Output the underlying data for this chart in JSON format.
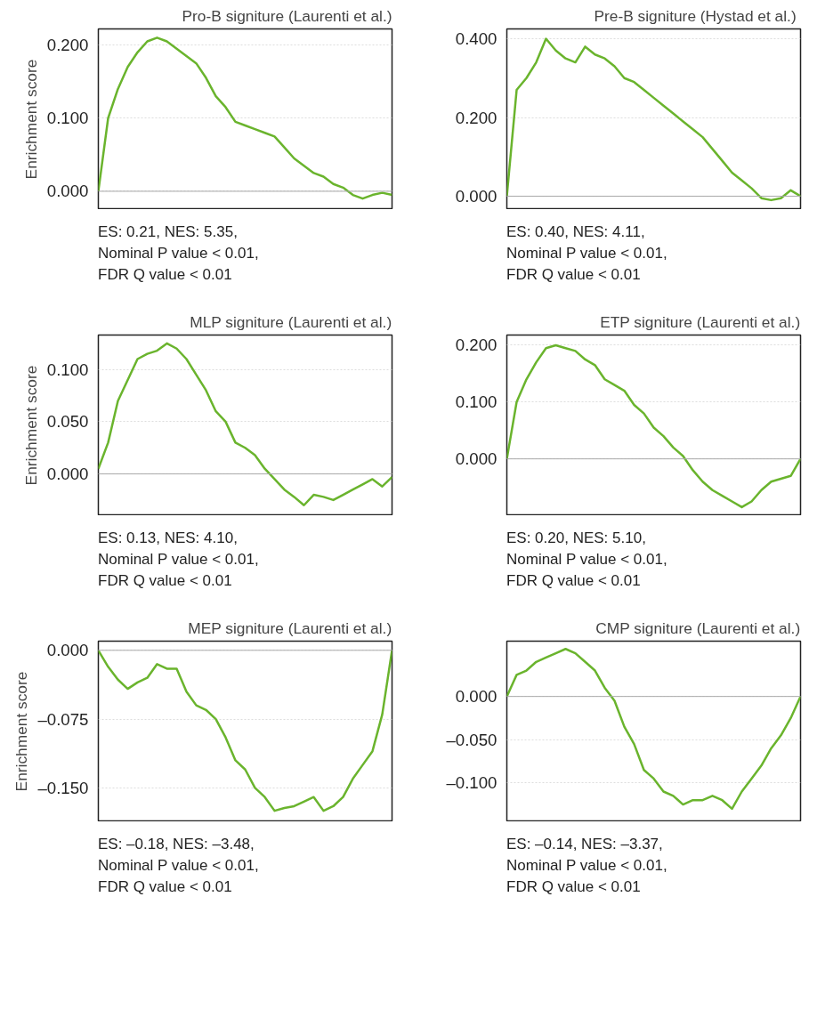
{
  "chart_data": [
    {
      "type": "line",
      "title": "Pro-B signiture (Laurenti et al.)",
      "ylabel": "Enrichment score",
      "categories": [
        null,
        null,
        null,
        null,
        null,
        null,
        null,
        null,
        null,
        null,
        null,
        null,
        null,
        null,
        null,
        null,
        null,
        null,
        null,
        null,
        null,
        null,
        null,
        null,
        null,
        null,
        null,
        null,
        null,
        null,
        null
      ],
      "ylim": [
        -0.025,
        0.222
      ],
      "yticks": [
        {
          "value": 0,
          "label": "0.000"
        },
        {
          "value": 0.1,
          "label": "0.100"
        },
        {
          "value": 0.2,
          "label": "0.200"
        }
      ],
      "tick_labels": "y",
      "grid": "y",
      "series": [
        {
          "color": "#6ab42d",
          "values": [
            0,
            0.1,
            0.14,
            0.17,
            0.19,
            0.205,
            0.21,
            0.205,
            0.195,
            0.185,
            0.175,
            0.155,
            0.13,
            0.115,
            0.095,
            0.09,
            0.085,
            0.08,
            0.075,
            0.06,
            0.045,
            0.035,
            0.025,
            0.02,
            0.01,
            0.005,
            -0.005,
            -0.01,
            -0.005,
            -0.002,
            -0.005
          ]
        }
      ],
      "ref_lines": [
        {
          "axis": "y",
          "value": 0,
          "color": "#aaaaaa"
        }
      ],
      "annotations": [
        "ES: 0.21, NES: 5.35,",
        "Nominal P value < 0.01,",
        "FDR Q value < 0.01"
      ]
    },
    {
      "type": "line",
      "title": "Pre-B signiture  (Hystad et al.)",
      "categories": [
        null,
        null,
        null,
        null,
        null,
        null,
        null,
        null,
        null,
        null,
        null,
        null,
        null,
        null,
        null,
        null,
        null,
        null,
        null,
        null,
        null,
        null,
        null,
        null,
        null,
        null,
        null,
        null,
        null,
        null,
        null
      ],
      "ylim": [
        -0.034,
        0.425
      ],
      "yticks": [
        {
          "value": 0,
          "label": "0.000"
        },
        {
          "value": 0.2,
          "label": "0.200"
        },
        {
          "value": 0.4,
          "label": "0.400"
        }
      ],
      "tick_labels": "y",
      "grid": "y",
      "series": [
        {
          "color": "#6ab42d",
          "values": [
            0,
            0.27,
            0.3,
            0.34,
            0.4,
            0.37,
            0.35,
            0.34,
            0.38,
            0.36,
            0.35,
            0.33,
            0.3,
            0.29,
            0.27,
            0.25,
            0.23,
            0.21,
            0.19,
            0.17,
            0.15,
            0.12,
            0.09,
            0.06,
            0.04,
            0.02,
            -0.005,
            -0.01,
            -0.005,
            0.015,
            0
          ]
        }
      ],
      "ref_lines": [
        {
          "axis": "y",
          "value": 0,
          "color": "#aaaaaa"
        }
      ],
      "annotations": [
        "ES: 0.40, NES: 4.11,",
        "Nominal P value < 0.01,",
        "FDR Q value < 0.01"
      ]
    },
    {
      "type": "line",
      "title": "MLP signiture (Laurenti et al.)",
      "ylabel": "Enrichment score",
      "categories": [
        null,
        null,
        null,
        null,
        null,
        null,
        null,
        null,
        null,
        null,
        null,
        null,
        null,
        null,
        null,
        null,
        null,
        null,
        null,
        null,
        null,
        null,
        null,
        null,
        null,
        null,
        null,
        null,
        null,
        null,
        null
      ],
      "ylim": [
        -0.04,
        0.133
      ],
      "yticks": [
        {
          "value": 0,
          "label": "0.000"
        },
        {
          "value": 0.05,
          "label": "0.050"
        },
        {
          "value": 0.1,
          "label": "0.100"
        }
      ],
      "tick_labels": "y",
      "grid": "y",
      "series": [
        {
          "color": "#6ab42d",
          "values": [
            0.005,
            0.03,
            0.07,
            0.09,
            0.11,
            0.115,
            0.118,
            0.125,
            0.12,
            0.11,
            0.095,
            0.08,
            0.06,
            0.05,
            0.03,
            0.025,
            0.018,
            0.005,
            -0.005,
            -0.015,
            -0.022,
            -0.03,
            -0.02,
            -0.022,
            -0.025,
            -0.02,
            -0.015,
            -0.01,
            -0.005,
            -0.012,
            -0.003
          ]
        }
      ],
      "ref_lines": [
        {
          "axis": "y",
          "value": 0,
          "color": "#aaaaaa"
        }
      ],
      "annotations": [
        "ES: 0.13, NES: 4.10,",
        "Nominal P value < 0.01,",
        "FDR Q value < 0.01"
      ]
    },
    {
      "type": "line",
      "title": "ETP signiture (Laurenti et al.)",
      "categories": [
        null,
        null,
        null,
        null,
        null,
        null,
        null,
        null,
        null,
        null,
        null,
        null,
        null,
        null,
        null,
        null,
        null,
        null,
        null,
        null,
        null,
        null,
        null,
        null,
        null,
        null,
        null,
        null,
        null,
        null,
        null
      ],
      "ylim": [
        -0.1,
        0.218
      ],
      "yticks": [
        {
          "value": 0,
          "label": "0.000"
        },
        {
          "value": 0.1,
          "label": "0.100"
        },
        {
          "value": 0.2,
          "label": "0.200"
        }
      ],
      "tick_labels": "y",
      "grid": "y",
      "series": [
        {
          "color": "#6ab42d",
          "values": [
            0,
            0.1,
            0.14,
            0.17,
            0.195,
            0.2,
            0.195,
            0.19,
            0.175,
            0.165,
            0.14,
            0.13,
            0.12,
            0.095,
            0.08,
            0.055,
            0.04,
            0.02,
            0.005,
            -0.02,
            -0.04,
            -0.055,
            -0.065,
            -0.075,
            -0.085,
            -0.075,
            -0.055,
            -0.04,
            -0.035,
            -0.03,
            0
          ]
        }
      ],
      "ref_lines": [
        {
          "axis": "y",
          "value": 0,
          "color": "#aaaaaa"
        }
      ],
      "annotations": [
        "ES: 0.20, NES: 5.10,",
        "Nominal P value < 0.01,",
        "FDR Q value < 0.01"
      ]
    },
    {
      "type": "line",
      "title": "MEP signiture (Laurenti et al.)",
      "ylabel": "Enrichment score",
      "categories": [
        null,
        null,
        null,
        null,
        null,
        null,
        null,
        null,
        null,
        null,
        null,
        null,
        null,
        null,
        null,
        null,
        null,
        null,
        null,
        null,
        null,
        null,
        null,
        null,
        null,
        null,
        null,
        null,
        null,
        null,
        null
      ],
      "ylim": [
        -0.187,
        0.01
      ],
      "yticks": [
        {
          "value": 0,
          "label": "0.000"
        },
        {
          "value": -0.075,
          "label": "–0.075"
        },
        {
          "value": -0.15,
          "label": "–0.150"
        }
      ],
      "tick_labels": "y",
      "grid": "y",
      "series": [
        {
          "color": "#6ab42d",
          "values": [
            0,
            -0.018,
            -0.032,
            -0.042,
            -0.035,
            -0.03,
            -0.015,
            -0.02,
            -0.02,
            -0.045,
            -0.06,
            -0.065,
            -0.075,
            -0.095,
            -0.12,
            -0.13,
            -0.15,
            -0.16,
            -0.175,
            -0.172,
            -0.17,
            -0.165,
            -0.16,
            -0.175,
            -0.17,
            -0.16,
            -0.14,
            -0.125,
            -0.11,
            -0.07,
            0
          ]
        }
      ],
      "ref_lines": [
        {
          "axis": "y",
          "value": 0,
          "color": "#aaaaaa"
        }
      ],
      "annotations": [
        "ES: –0.18, NES: –3.48,",
        "Nominal P value < 0.01,",
        "FDR Q value < 0.01"
      ]
    },
    {
      "type": "line",
      "title": "CMP signiture (Laurenti et al.)",
      "categories": [
        null,
        null,
        null,
        null,
        null,
        null,
        null,
        null,
        null,
        null,
        null,
        null,
        null,
        null,
        null,
        null,
        null,
        null,
        null,
        null,
        null,
        null,
        null,
        null,
        null,
        null,
        null,
        null,
        null,
        null,
        null
      ],
      "ylim": [
        -0.145,
        0.064
      ],
      "yticks": [
        {
          "value": 0,
          "label": "0.000"
        },
        {
          "value": -0.05,
          "label": "–0.050"
        },
        {
          "value": -0.1,
          "label": "–0.100"
        }
      ],
      "tick_labels": "y",
      "grid": "y",
      "series": [
        {
          "color": "#6ab42d",
          "values": [
            0,
            0.025,
            0.03,
            0.04,
            0.045,
            0.05,
            0.055,
            0.05,
            0.04,
            0.03,
            0.01,
            -0.005,
            -0.035,
            -0.055,
            -0.085,
            -0.095,
            -0.11,
            -0.115,
            -0.125,
            -0.12,
            -0.12,
            -0.115,
            -0.12,
            -0.13,
            -0.11,
            -0.095,
            -0.08,
            -0.06,
            -0.045,
            -0.025,
            0
          ]
        }
      ],
      "ref_lines": [
        {
          "axis": "y",
          "value": 0,
          "color": "#aaaaaa"
        }
      ],
      "annotations": [
        "ES: –0.14, NES: –3.37,",
        "Nominal P value < 0.01,",
        "FDR Q value < 0.01"
      ]
    }
  ]
}
